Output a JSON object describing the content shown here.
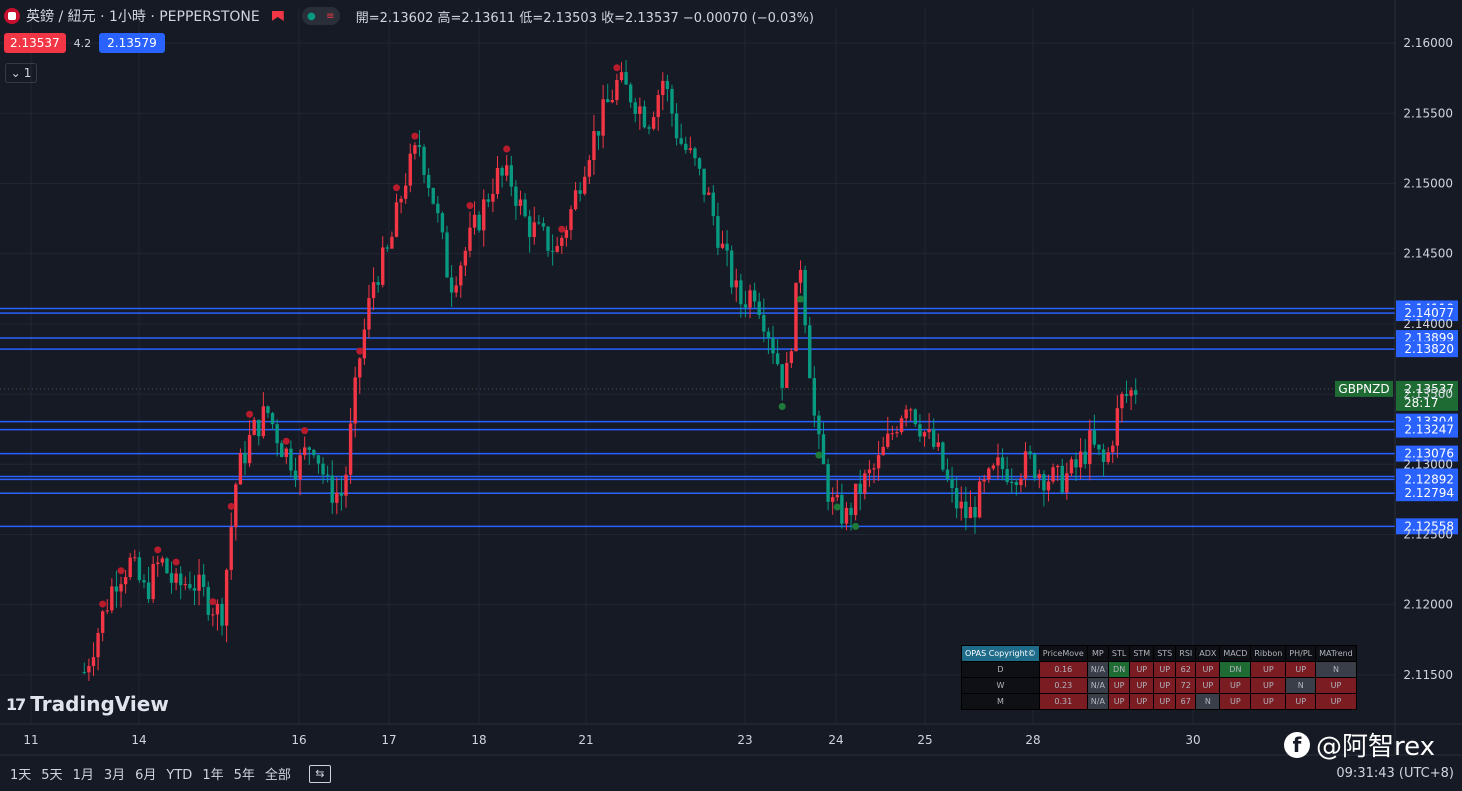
{
  "header": {
    "symbol": "英鎊 / 紐元 · 1小時 · PEPPERSTONE",
    "ohlc": "開=2.13602  高=2.13611  低=2.13503  收=2.13537  −0.00070 (−0.03%)",
    "bid": "2.13537",
    "spread": "4.2",
    "ask": "2.13579",
    "collapse_label": "1"
  },
  "colors": {
    "bg": "#161a25",
    "up": "#f23645",
    "down": "#089981",
    "level": "#2962ff",
    "grid": "#232632",
    "text": "#d1d4dc"
  },
  "price_axis": {
    "ticks": [
      "2.16000",
      "2.15500",
      "2.15000",
      "2.14500",
      "2.14000",
      "2.13500",
      "2.13000",
      "2.12500",
      "2.12000",
      "2.11500"
    ],
    "tick_values": [
      2.16,
      2.155,
      2.15,
      2.145,
      2.14,
      2.135,
      2.13,
      2.125,
      2.12,
      2.115
    ]
  },
  "time_axis": {
    "labels": [
      "11",
      "14",
      "16",
      "17",
      "18",
      "21",
      "23",
      "24",
      "25",
      "28",
      "30"
    ]
  },
  "levels": [
    {
      "label": "2.14110",
      "value": 2.1411
    },
    {
      "label": "2.14077",
      "value": 2.14077
    },
    {
      "label": "2.13899",
      "value": 2.13899
    },
    {
      "label": "2.13820",
      "value": 2.1382
    },
    {
      "label": "2.13304",
      "value": 2.13304
    },
    {
      "label": "2.13247",
      "value": 2.13247
    },
    {
      "label": "2.13076",
      "value": 2.13076
    },
    {
      "label": "2.12913",
      "value": 2.12913
    },
    {
      "label": "2.12892",
      "value": 2.12892
    },
    {
      "label": "2.12794",
      "value": 2.12794
    },
    {
      "label": "2.12558",
      "value": 2.12558
    }
  ],
  "current": {
    "symbol": "GBPNZD",
    "price": "2.13537",
    "countdown": "28:17",
    "value": 2.13537
  },
  "chart_data": {
    "type": "candlestick",
    "symbol": "GBPNZD",
    "interval": "1h",
    "ylim": [
      2.1115,
      2.1625
    ],
    "close_path": [
      [
        0,
        2.1152
      ],
      [
        1,
        2.1185
      ],
      [
        2,
        2.1218
      ],
      [
        3,
        2.123
      ],
      [
        4,
        2.1208
      ],
      [
        5,
        2.1232
      ],
      [
        6,
        2.1212
      ],
      [
        7,
        2.1218
      ],
      [
        8,
        2.1205
      ],
      [
        9,
        2.1192
      ],
      [
        10,
        2.1292
      ],
      [
        11,
        2.1322
      ],
      [
        12,
        2.1338
      ],
      [
        13,
        2.1312
      ],
      [
        14,
        2.1298
      ],
      [
        15,
        2.1318
      ],
      [
        16,
        2.1282
      ],
      [
        17,
        2.1278
      ],
      [
        18,
        2.1372
      ],
      [
        19,
        2.1432
      ],
      [
        20,
        2.1452
      ],
      [
        21,
        2.1502
      ],
      [
        22,
        2.1528
      ],
      [
        23,
        2.1485
      ],
      [
        24,
        2.1428
      ],
      [
        25,
        2.1452
      ],
      [
        26,
        2.1478
      ],
      [
        27,
        2.1505
      ],
      [
        28,
        2.1502
      ],
      [
        29,
        2.1472
      ],
      [
        30,
        2.1462
      ],
      [
        31,
        2.1452
      ],
      [
        32,
        2.1482
      ],
      [
        33,
        2.1522
      ],
      [
        34,
        2.1548
      ],
      [
        35,
        2.1572
      ],
      [
        36,
        2.1562
      ],
      [
        37,
        2.1545
      ],
      [
        38,
        2.1575
      ],
      [
        39,
        2.1532
      ],
      [
        40,
        2.1515
      ],
      [
        41,
        2.1488
      ],
      [
        42,
        2.1448
      ],
      [
        43,
        2.1415
      ],
      [
        44,
        2.1425
      ],
      [
        45,
        2.1392
      ],
      [
        46,
        2.1355
      ],
      [
        47,
        2.1445
      ],
      [
        48,
        2.1322
      ],
      [
        49,
        2.1272
      ],
      [
        50,
        2.1262
      ],
      [
        51,
        2.1285
      ],
      [
        52,
        2.1298
      ],
      [
        53,
        2.1322
      ],
      [
        54,
        2.1348
      ],
      [
        55,
        2.1325
      ],
      [
        56,
        2.1308
      ],
      [
        57,
        2.1275
      ],
      [
        58,
        2.1262
      ],
      [
        59,
        2.1282
      ],
      [
        60,
        2.1298
      ],
      [
        61,
        2.1295
      ],
      [
        62,
        2.1302
      ],
      [
        63,
        2.1292
      ],
      [
        64,
        2.1288
      ],
      [
        65,
        2.1296
      ],
      [
        66,
        2.1315
      ],
      [
        67,
        2.1298
      ],
      [
        68,
        2.1345
      ],
      [
        69,
        2.1354
      ]
    ],
    "time_labels": [
      "11",
      "14",
      "16",
      "17",
      "18",
      "21",
      "23",
      "24",
      "25",
      "28",
      "30"
    ]
  },
  "opas": {
    "title": "OPAS Copyright©",
    "columns": [
      "PriceMove",
      "MP",
      "STL",
      "STM",
      "STS",
      "RSI",
      "ADX",
      "MACD",
      "Ribbon",
      "PH/PL",
      "MATrend"
    ],
    "rows": [
      {
        "label": "D",
        "cells": [
          "0.16",
          "N/A",
          "DN",
          "UP",
          "UP",
          "62",
          "UP",
          "DN",
          "UP",
          "UP",
          "N"
        ]
      },
      {
        "label": "W",
        "cells": [
          "0.23",
          "N/A",
          "UP",
          "UP",
          "UP",
          "72",
          "UP",
          "UP",
          "UP",
          "N",
          "UP"
        ]
      },
      {
        "label": "M",
        "cells": [
          "0.31",
          "N/A",
          "UP",
          "UP",
          "UP",
          "67",
          "N",
          "UP",
          "UP",
          "UP",
          "UP"
        ]
      }
    ]
  },
  "bottom": {
    "ranges": [
      "1天",
      "5天",
      "1月",
      "3月",
      "6月",
      "YTD",
      "1年",
      "5年",
      "全部"
    ],
    "time": "09:31:43 (UTC+8)"
  },
  "brand": {
    "name": "TradingView",
    "watermark": "@阿智rex"
  }
}
